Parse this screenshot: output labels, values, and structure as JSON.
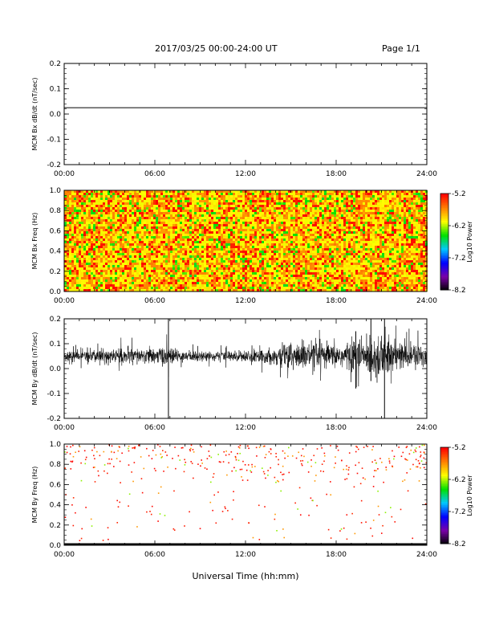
{
  "header": {
    "title": "2017/03/25  00:00-24:00 UT",
    "page": "Page 1/1"
  },
  "xaxis_label": "Universal Time (hh:mm)",
  "colorbar_labels": [
    "-5.2",
    "-6.2",
    "-7.2",
    "-8.2"
  ],
  "colors": {
    "trace": "#000000",
    "colormap": [
      "#000000",
      "#7a00a8",
      "#0000ff",
      "#00c8ff",
      "#00e000",
      "#ffff00",
      "#ff8000",
      "#ff0000"
    ]
  },
  "chart_data": [
    {
      "type": "line",
      "ylabel": "MCM Bx dB/dt (nT/sec)",
      "xlim": [
        0,
        24
      ],
      "ylim": [
        -0.2,
        0.2
      ],
      "xticks": [
        "00:00",
        "06:00",
        "12:00",
        "18:00",
        "24:00"
      ],
      "yticks": [
        "0.2",
        "0.1",
        "0.0",
        "-0.1",
        "-0.2"
      ],
      "series": [
        {
          "x": [
            0,
            24
          ],
          "y": [
            0.025,
            0.025
          ]
        }
      ]
    },
    {
      "type": "heatmap",
      "ylabel": "MCM Bx Freq (Hz)",
      "colorbar_label": "Log10 Power",
      "colorbar_range": [
        -8.2,
        -5.2
      ],
      "xlim": [
        0,
        24
      ],
      "ylim": [
        0,
        1.0
      ],
      "xticks": [
        "00:00",
        "06:00",
        "12:00",
        "18:00",
        "24:00"
      ],
      "yticks": [
        "1.0",
        "0.8",
        "0.6",
        "0.4",
        "0.2",
        "0.0"
      ],
      "description": "dense noise across all times and frequencies, mostly yellow/orange/red with green speckle"
    },
    {
      "type": "line",
      "ylabel": "MCM By dB/dt (nT/sec)",
      "xlim": [
        0,
        24
      ],
      "ylim": [
        -0.2,
        0.2
      ],
      "xticks": [
        "00:00",
        "06:00",
        "12:00",
        "18:00",
        "24:00"
      ],
      "yticks": [
        "0.2",
        "0.1",
        "0.0",
        "-0.1",
        "-0.2"
      ],
      "series": [
        {
          "baseline": 0.05,
          "envelope": {
            "x": [
              0,
              2,
              4,
              6,
              6.9,
              7.1,
              8,
              10,
              12,
              14,
              15,
              16,
              18,
              19,
              20,
              21,
              22,
              23,
              24
            ],
            "amp": [
              0.025,
              0.03,
              0.035,
              0.03,
              0.05,
              0.03,
              0.025,
              0.02,
              0.025,
              0.035,
              0.07,
              0.06,
              0.05,
              0.07,
              0.08,
              0.11,
              0.07,
              0.055,
              0.05
            ]
          },
          "spikes": [
            {
              "x": 6.9,
              "ymin": -0.2,
              "ymax": 0.2
            },
            {
              "x": 21.2,
              "ymin": -0.2,
              "ymax": 0.2
            },
            {
              "x": 19.3,
              "ymin": -0.08,
              "ymax": 0.15
            },
            {
              "x": 20.3,
              "ymin": -0.05,
              "ymax": 0.2
            }
          ]
        }
      ]
    },
    {
      "type": "heatmap",
      "ylabel": "MCM By Freq (Hz)",
      "colorbar_label": "Log10 Power",
      "colorbar_range": [
        -8.2,
        -5.2
      ],
      "xlim": [
        0,
        24
      ],
      "ylim": [
        0,
        1.0
      ],
      "xticks": [
        "00:00",
        "06:00",
        "12:00",
        "18:00",
        "24:00"
      ],
      "yticks": [
        "1.0",
        "0.8",
        "0.6",
        "0.4",
        "0.2",
        "0.0"
      ],
      "description": "sparse red/orange points concentrated at 0.6-1.0 Hz, few scattered lower, strong bottom row at 0 Hz"
    }
  ]
}
